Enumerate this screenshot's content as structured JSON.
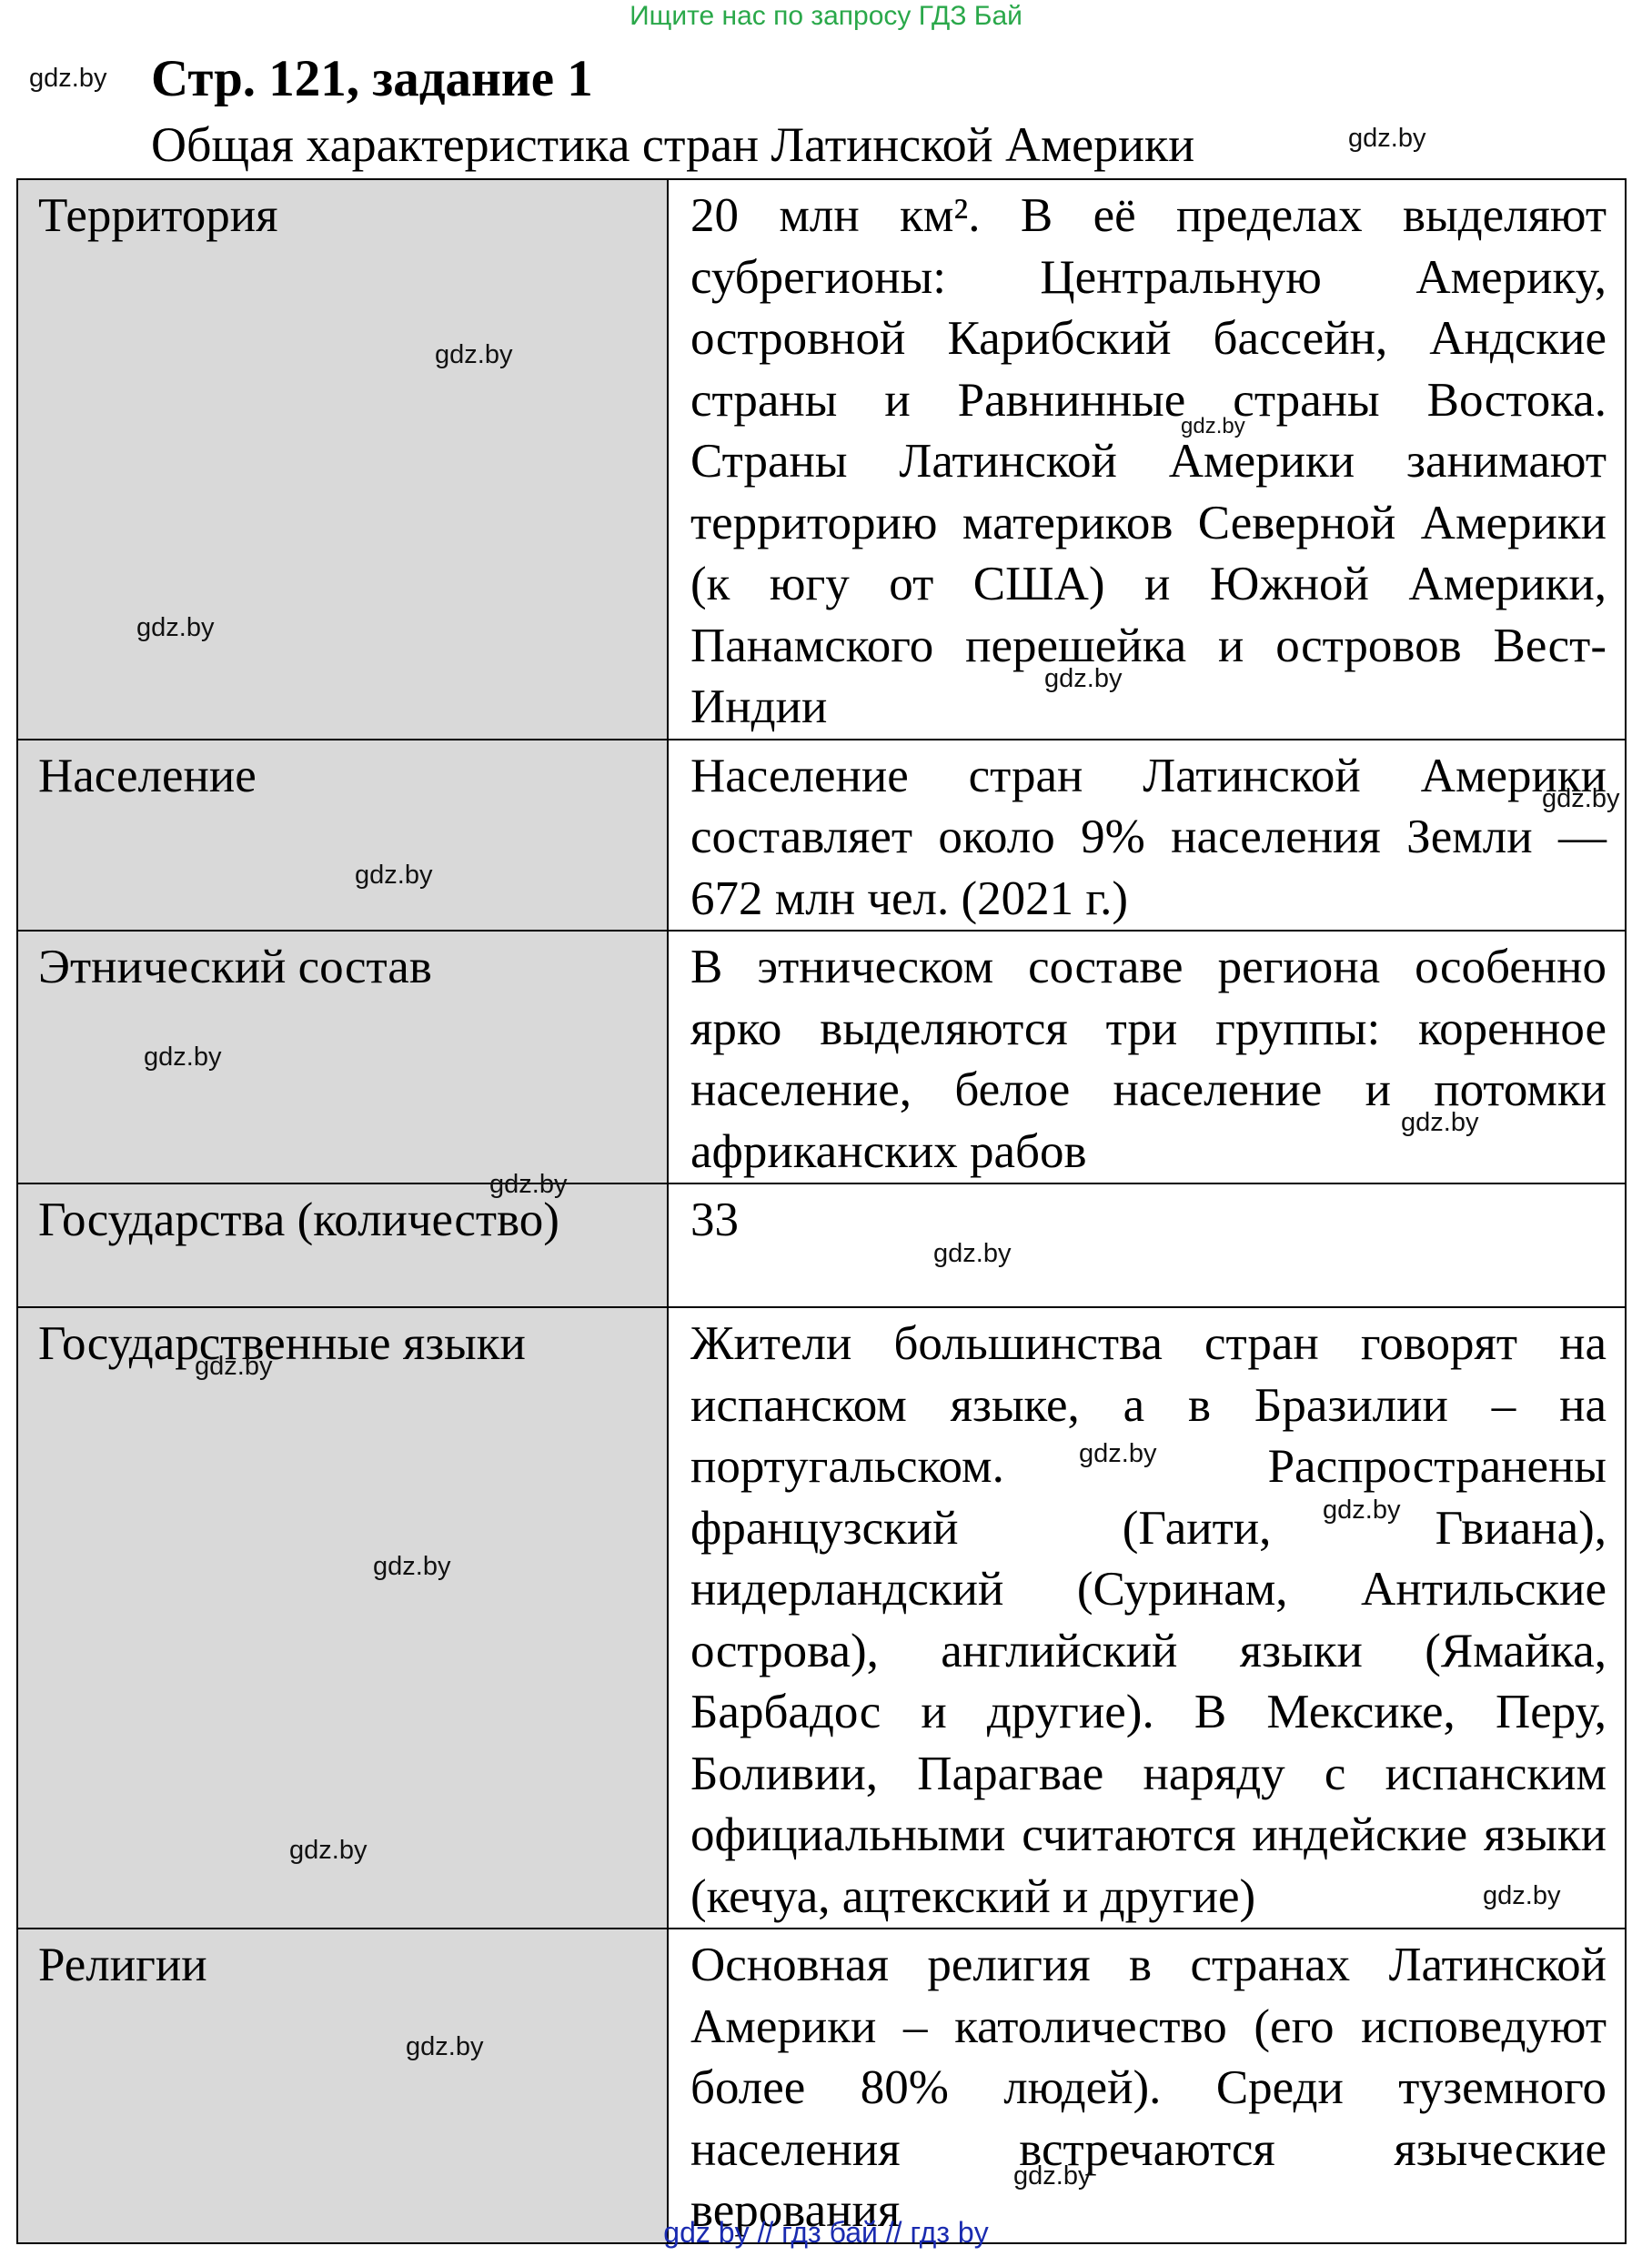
{
  "banner": "Ищите нас по запросу ГДЗ Бай",
  "header": {
    "title": "Стр. 121, задание 1",
    "subtitle": "Общая характеристика стран Латинской Америки"
  },
  "watermark": "gdz.by",
  "rows": [
    {
      "label": "Территория",
      "value": "20 млн км². В её пределах выделяют субрегионы: Центральную Америку, островной Карибский бассейн, Андские страны и Равнинные страны Востока. Страны Латинской Америки занимают территорию материков Северной Америки (к югу от США) и Южной Америки, Панамского перешейка и островов Вест-Индии"
    },
    {
      "label": "Население",
      "value": "Население стран Латинской Америки составляет около 9% населения Земли — 672 млн чел. (2021 г.)"
    },
    {
      "label": "Этнический состав",
      "value": "В этническом составе региона особенно ярко выделяются три группы: коренное население, белое население и потомки африканских рабов"
    },
    {
      "label": "Государства (количество)",
      "value": "33"
    },
    {
      "label": "Государственные языки",
      "value": "Жители большинства стран говорят на испанском языке, а в Бразилии – на португальском. Распространены французский (Гаити, Гвиана), нидерландский (Суринам, Антильские острова), английский языки (Ямайка, Барбадос и другие). В Мексике, Перу, Боливии, Парагвае наряду с испанским официальными считаются индейские языки (кечуа, ацтекский и другие)"
    },
    {
      "label": "Религии",
      "value": "Основная религия в странах Латинской Америки – католичество (его исповедуют более 80% людей). Среди туземного населения встречаются языческие верования"
    }
  ],
  "footer": "gdz by  //  гдз бай  //  гдз by"
}
